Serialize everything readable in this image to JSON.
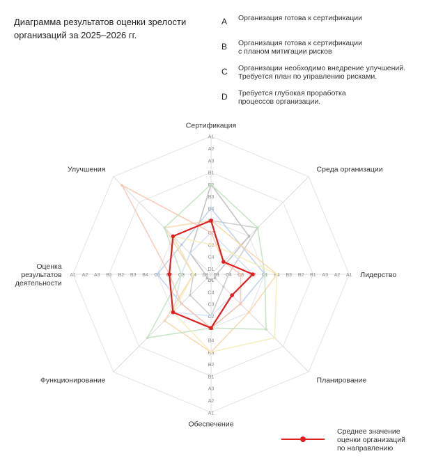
{
  "page": {
    "title": "Диаграмма результатов оценки зрелости\nорганизаций за 2025–2026 гг."
  },
  "grade_legend": [
    {
      "letter": "A",
      "text": "Организация готова к сертификации"
    },
    {
      "letter": "B",
      "text": "Организация готова к сертификации\nс планом митигации рисков"
    },
    {
      "letter": "C",
      "text": "Организации необходимо внедрение улучшений.\nТребуется план по управлению рисками."
    },
    {
      "letter": "D",
      "text": "Требуется глубокая проработка\nпроцессов организации."
    }
  ],
  "mean_legend": {
    "text": "Среднее значение\nоценки организаций\nпо направлению",
    "color": "#e02020"
  },
  "chart_data": {
    "type": "radar",
    "axes": [
      "Сертификация",
      "Среда организации",
      "Лидерство",
      "Планирование",
      "Обеспечение",
      "Функционирование",
      "Оценка\nрезультатов\nдеятельности",
      "Улучшения"
    ],
    "scale_levels": [
      "D1",
      "C4",
      "C3",
      "C2",
      "C1",
      "B4",
      "B3",
      "B2",
      "B1",
      "A3",
      "A2",
      "A1"
    ],
    "grid_rings_at": [
      "C1",
      "B1",
      "A1"
    ],
    "series": [
      {
        "name": "Среднее значение оценки организаций по направлению",
        "color": "#e02020",
        "values": [
          "C1",
          "C4",
          "C2",
          "C3",
          "C1",
          "C1",
          "C2",
          "C1"
        ]
      }
    ],
    "organizations": [
      {
        "color": "#b8b8b8",
        "values": [
          "B2",
          "C1",
          "D1",
          "D1",
          "D1",
          "D1",
          "D1",
          "C3"
        ]
      },
      {
        "color": "#c7c7c7",
        "values": [
          "C1",
          "B4",
          "C4",
          "C4",
          "C2",
          "C3",
          "C4",
          "C1"
        ]
      },
      {
        "color": "#b6cde6",
        "values": [
          "B4",
          "C2",
          "C1",
          "C2",
          "C1",
          "C2",
          "C1",
          "C2"
        ]
      },
      {
        "color": "#cfe0f2",
        "values": [
          "C2",
          "C3",
          "C2",
          "C3",
          "C2",
          "C1",
          "C3",
          "C3"
        ]
      },
      {
        "color": "#f6d5a8",
        "values": [
          "C1",
          "C2",
          "B4",
          "C1",
          "B3",
          "B4",
          "C4",
          "B4"
        ]
      },
      {
        "color": "#f8c4ad",
        "values": [
          "C2",
          "C4",
          "C3",
          "C2",
          "C1",
          "C2",
          "C2",
          "A2"
        ]
      },
      {
        "color": "#bfe0bf",
        "values": [
          "B2",
          "B4",
          "C1",
          "B3",
          "C1",
          "B2",
          "C3",
          "B4"
        ]
      },
      {
        "color": "#f3ecb5",
        "values": [
          "C3",
          "C3",
          "B4",
          "B2",
          "B3",
          "C1",
          "C4",
          "C1"
        ]
      }
    ]
  }
}
